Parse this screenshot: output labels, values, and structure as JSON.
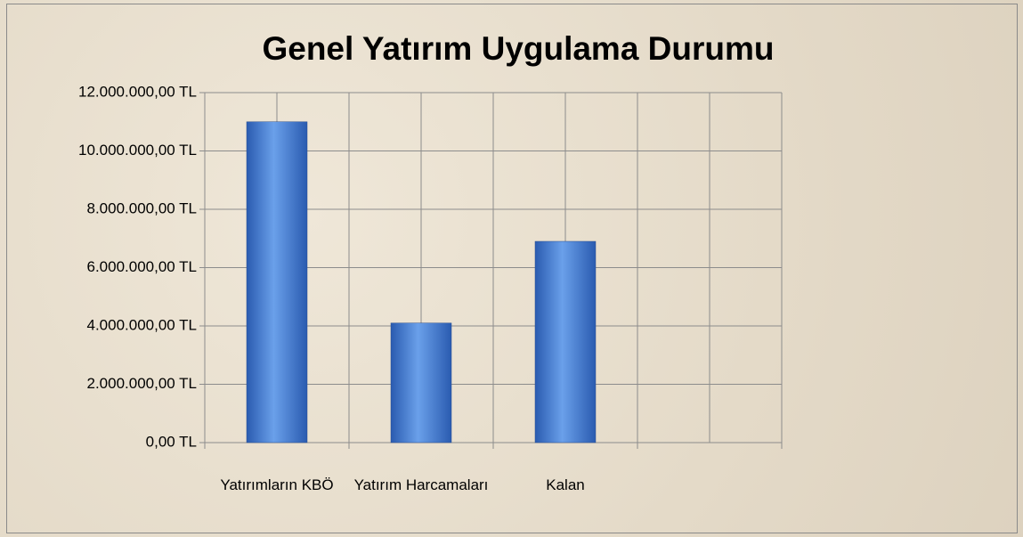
{
  "chart_data": {
    "type": "bar",
    "title": "Genel Yatırım Uygulama Durumu",
    "categories": [
      "Yatırımların KBÖ",
      "Yatırım Harcamaları",
      "Kalan",
      null
    ],
    "values": [
      11000000,
      4100000,
      6900000,
      null
    ],
    "color": "#3a72cc",
    "ylim": [
      0,
      12000000
    ],
    "yticks": [
      {
        "value": 0,
        "label": "0,00 TL"
      },
      {
        "value": 2000000,
        "label": "2.000.000,00 TL"
      },
      {
        "value": 4000000,
        "label": "4.000.000,00 TL"
      },
      {
        "value": 6000000,
        "label": "6.000.000,00 TL"
      },
      {
        "value": 8000000,
        "label": "8.000.000,00 TL"
      },
      {
        "value": 10000000,
        "label": "10.000.000,00 TL"
      },
      {
        "value": 12000000,
        "label": "12.000.000,00 TL"
      }
    ],
    "grid": true
  }
}
